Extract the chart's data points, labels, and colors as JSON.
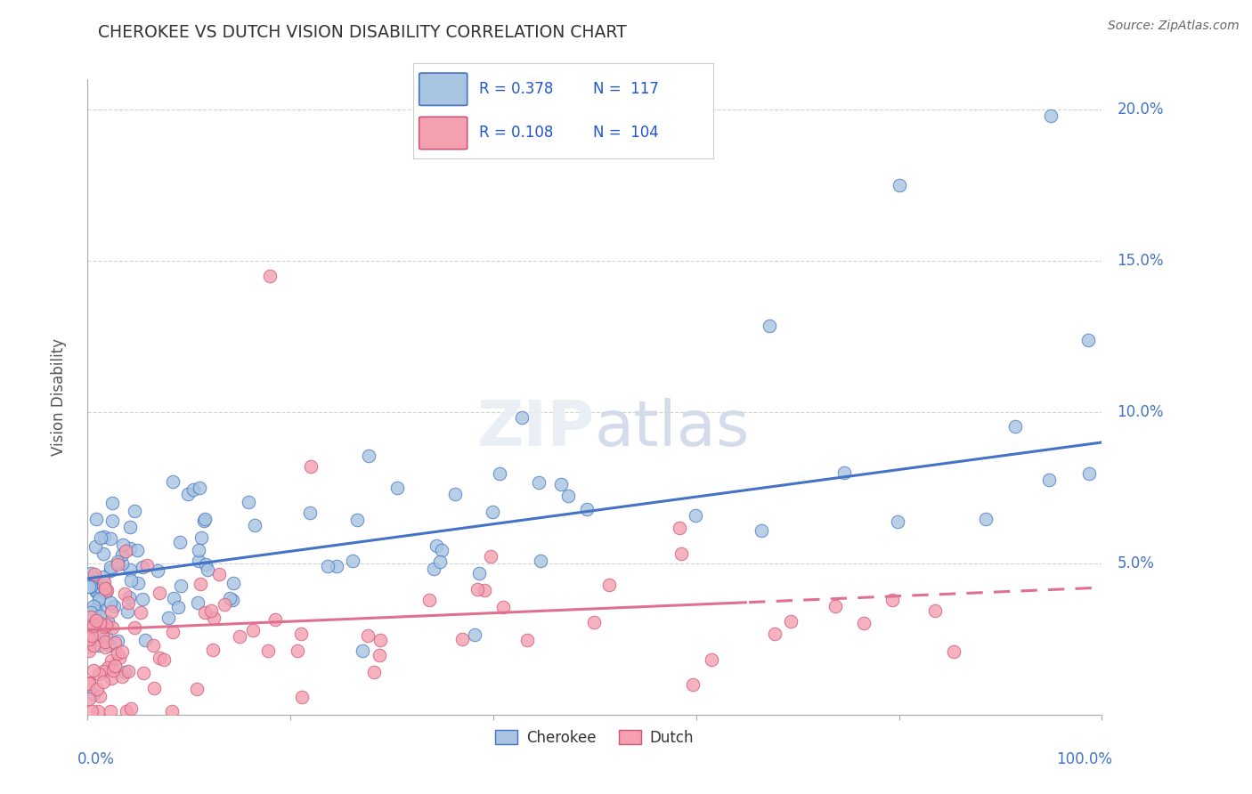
{
  "title": "CHEROKEE VS DUTCH VISION DISABILITY CORRELATION CHART",
  "source": "Source: ZipAtlas.com",
  "ylabel": "Vision Disability",
  "xlim": [
    0,
    100
  ],
  "ylim": [
    0,
    21
  ],
  "cherokee_R": 0.378,
  "cherokee_N": 117,
  "dutch_R": 0.108,
  "dutch_N": 104,
  "cherokee_color": "#a8c4e0",
  "dutch_color": "#f4a0b0",
  "cherokee_line_color": "#4472c4",
  "dutch_line_color": "#e07090",
  "title_color": "#333333",
  "legend_R_color": "#2255cc",
  "background_color": "#ffffff"
}
